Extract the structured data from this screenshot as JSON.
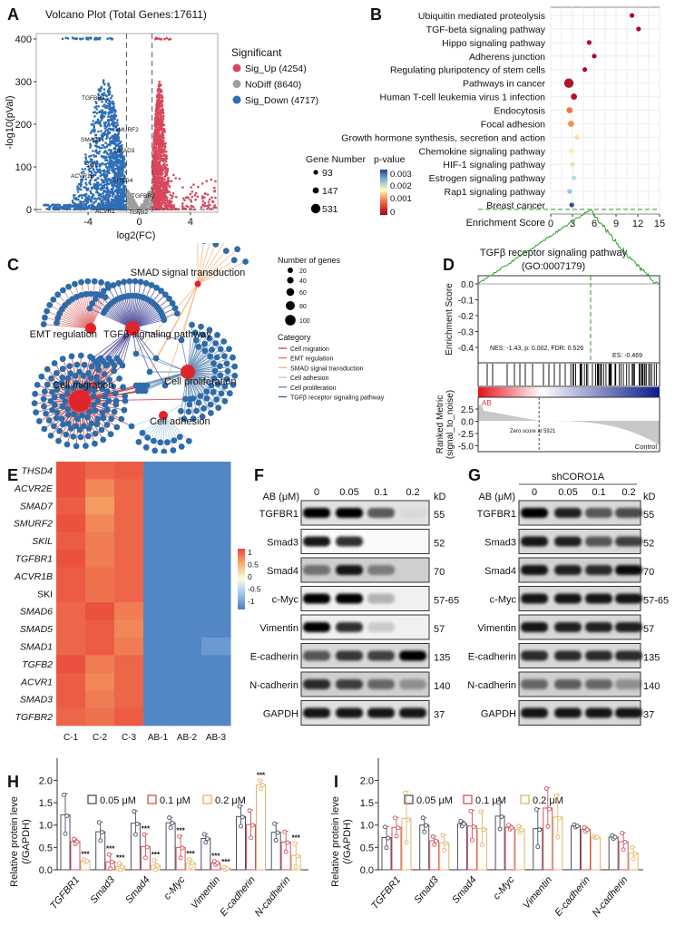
{
  "panel_labels": [
    "A",
    "B",
    "C",
    "D",
    "E",
    "F",
    "G",
    "H",
    "I"
  ],
  "chart_data": [
    {
      "type": "scatter",
      "title": "Volcano Plot (Total Genes:17611)",
      "xlabel": "log2(FC)",
      "ylabel": "-log10(pVal)",
      "xticks": [
        "-4",
        "0",
        "4"
      ],
      "yticks": [
        "0",
        "100",
        "200",
        "300",
        "400"
      ],
      "xlim": [
        -7.8,
        6.3
      ],
      "ylim": [
        0,
        400
      ],
      "fc_threshold": 1,
      "legend_title": "Significant",
      "series": [
        {
          "name": "Sig_Up (4254)",
          "count": 4254,
          "color": "#d9475a"
        },
        {
          "name": "NoDiff (8640)",
          "count": 8640,
          "color": "#9e9e9e"
        },
        {
          "name": "Sig_Down (4717)",
          "count": 4717,
          "color": "#2f6eb5"
        }
      ],
      "gene_labels": [
        "TGFBR1",
        "SMURF2",
        "SMAD7",
        "SMAD3",
        "SKIL",
        "ACVR1B",
        "THSD4",
        "TGFBR2",
        "ACVR1",
        "TGFB2"
      ]
    },
    {
      "type": "scatter",
      "xlabel": "Enrichment Score",
      "xticks": [
        "0",
        "3",
        "6",
        "9",
        "12",
        "15"
      ],
      "xlim": [
        0,
        15
      ],
      "categories": [
        "Ubiquitin mediated proteolysis",
        "TGF-beta signaling pathway",
        "Hippo signaling pathway",
        "Adherens junction",
        "Regulating pluripotency of stem cells",
        "Pathways in cancer",
        "Human T-cell leukemia virus 1 infection",
        "Endocytosis",
        "Focal adhesion",
        "Growth hormone synthesis, secretion and action",
        "Chemokine signaling pathway",
        "HIF-1 signaling pathway",
        "Estrogen signaling pathway",
        "Rap1 signaling pathway",
        "Breast cancer"
      ],
      "enrichment": [
        11.2,
        12.1,
        5.3,
        6.0,
        4.7,
        2.5,
        3.2,
        2.6,
        2.8,
        3.6,
        2.8,
        3.0,
        3.2,
        2.6,
        2.9
      ],
      "pvalue": [
        0.0001,
        0.0001,
        0.0001,
        0.0001,
        0.0001,
        0.0002,
        0.0002,
        0.0011,
        0.0013,
        0.0019,
        0.002,
        0.0023,
        0.0027,
        0.0029,
        0.0035
      ],
      "gene_number": [
        93,
        93,
        93,
        93,
        93,
        531,
        147,
        147,
        147,
        93,
        93,
        93,
        93,
        93,
        93
      ],
      "size_legend": {
        "title": "Gene Number",
        "values": [
          "93",
          "147",
          "531"
        ]
      },
      "color_legend": {
        "title": "p-value",
        "ticks": [
          "0.003",
          "0.002",
          "0.001",
          "0"
        ]
      }
    },
    {
      "type": "line",
      "title": "TGFβ receptor signaling pathway",
      "subtitle": "(GO:0007179)",
      "ylabel": "Enrichment Score",
      "yticks": [
        "0.0",
        "-0.1",
        "-0.2",
        "-0.3",
        "-0.4"
      ],
      "ylim": [
        -0.47,
        0.0
      ],
      "min_es": -0.469,
      "nes_text": "NES: -1.43, p: 0.002, FDR: 0.526",
      "es_text": "ES: -0.469",
      "ranked_ylabel": [
        "Ranked Metric",
        "(signal_to_noise)"
      ],
      "ranked_yticks": [
        "2.5",
        "0.0",
        "-2.5",
        "-5.0"
      ],
      "zero_score_text": "Zero score at 5921",
      "pos_label": "AB",
      "neg_label": "Control"
    },
    {
      "type": "heatmap",
      "rows": [
        "THSD4",
        "ACVR2E",
        "SMAD7",
        "SMURF2",
        "SKIL",
        "TGFBR1",
        "ACVR1B",
        "SKI",
        "SMAD6",
        "SMAD5",
        "SMAD1",
        "TGFB2",
        "ACVR1",
        "SMAD3",
        "TGFBR2"
      ],
      "columns": [
        "C-1",
        "C-2",
        "C-3",
        "AB-1",
        "AB-2",
        "AB-3"
      ],
      "values": [
        [
          0.95,
          0.85,
          0.9,
          -0.95,
          -0.95,
          -0.95
        ],
        [
          0.95,
          0.7,
          0.85,
          -0.95,
          -0.95,
          -0.95
        ],
        [
          0.9,
          0.6,
          0.85,
          -0.95,
          -0.95,
          -0.95
        ],
        [
          0.95,
          0.7,
          0.85,
          -0.95,
          -0.95,
          -0.95
        ],
        [
          0.9,
          0.75,
          0.85,
          -0.95,
          -0.95,
          -0.95
        ],
        [
          0.95,
          0.75,
          0.85,
          -0.95,
          -0.95,
          -0.95
        ],
        [
          0.9,
          0.8,
          0.85,
          -0.95,
          -0.95,
          -0.95
        ],
        [
          0.9,
          0.8,
          0.85,
          -0.95,
          -0.95,
          -0.95
        ],
        [
          0.85,
          0.95,
          0.75,
          -0.95,
          -0.95,
          -0.95
        ],
        [
          0.85,
          0.9,
          0.7,
          -0.95,
          -0.95,
          -0.95
        ],
        [
          0.85,
          0.9,
          0.75,
          -0.95,
          -0.95,
          -0.8
        ],
        [
          0.95,
          0.75,
          0.85,
          -0.95,
          -0.95,
          -0.95
        ],
        [
          0.9,
          0.7,
          0.85,
          -0.95,
          -0.95,
          -0.95
        ],
        [
          0.9,
          0.75,
          0.85,
          -0.95,
          -0.95,
          -0.95
        ],
        [
          0.85,
          0.8,
          0.9,
          -0.95,
          -0.95,
          -0.95
        ]
      ],
      "colorbar_ticks": [
        "1",
        "0.5",
        "0",
        "-0.5",
        "-1"
      ]
    },
    {
      "type": "bar",
      "ylabel": [
        "Relative protein leve",
        "(/GAPDH)"
      ],
      "yticks": [
        "0.0",
        "0.5",
        "1.0",
        "1.5",
        "2.0"
      ],
      "ylim": [
        0,
        2.5
      ],
      "categories": [
        "TGFBR1",
        "Smad3",
        "Smad4",
        "c-Myc",
        "Vimentin",
        "E-cadherin",
        "N-cadherin"
      ],
      "series": [
        {
          "name": "0.05 μM",
          "color": "#4b4f63",
          "values": [
            1.23,
            0.85,
            1.04,
            1.05,
            0.7,
            1.19,
            0.84
          ],
          "sd": [
            0.47,
            0.22,
            0.28,
            0.12,
            0.1,
            0.24,
            0.2
          ],
          "sig": [
            "",
            "",
            "",
            "",
            "",
            "",
            ""
          ]
        },
        {
          "name": "0.1 μM",
          "color": "#d0505a",
          "values": [
            0.63,
            0.18,
            0.52,
            0.5,
            0.15,
            1.01,
            0.62
          ],
          "sd": [
            0.06,
            0.17,
            0.28,
            0.26,
            0.04,
            0.33,
            0.24
          ],
          "sig": [
            "",
            "***",
            "***",
            "***",
            "***",
            "",
            ""
          ]
        },
        {
          "name": "0.2 μM",
          "color": "#e2b56a",
          "values": [
            0.2,
            0.07,
            0.1,
            0.15,
            0.03,
            1.9,
            0.32
          ],
          "sd": [
            0.03,
            0.08,
            0.12,
            0.09,
            0.03,
            0.1,
            0.28
          ],
          "sig": [
            "***",
            "***",
            "***",
            "***",
            "***",
            "***",
            "***"
          ]
        }
      ]
    },
    {
      "type": "bar",
      "ylabel": [
        "Relative protein leve",
        "(/GAPDH)"
      ],
      "yticks": [
        "0.0",
        "0.5",
        "1.0",
        "1.5",
        "2.0"
      ],
      "ylim": [
        0,
        2.5
      ],
      "categories": [
        "TGFBR1",
        "Smad3",
        "Smad4",
        "c-Myc",
        "Vimentin",
        "E-cadherin",
        "N-cadherin"
      ],
      "series": [
        {
          "name": "0.05 μM",
          "color": "#4b4f63",
          "values": [
            0.72,
            1.0,
            1.03,
            1.2,
            0.92,
            0.98,
            0.73
          ],
          "sd": [
            0.25,
            0.17,
            0.06,
            0.32,
            0.45,
            0.03,
            0.04
          ]
        },
        {
          "name": "0.1 μM",
          "color": "#d0505a",
          "values": [
            0.95,
            0.65,
            0.98,
            0.95,
            1.38,
            0.9,
            0.63
          ],
          "sd": [
            0.22,
            0.1,
            0.35,
            0.05,
            0.46,
            0.05,
            0.2
          ]
        },
        {
          "name": "0.2 μM",
          "color": "#e2b56a",
          "values": [
            1.15,
            0.6,
            0.92,
            0.9,
            1.18,
            0.73,
            0.37
          ],
          "sd": [
            0.6,
            0.18,
            0.4,
            0.08,
            0.5,
            0.02,
            0.14
          ]
        }
      ]
    }
  ],
  "network": {
    "hubs": [
      "SMAD signal transduction",
      "EMT regulation",
      "TGFβ signaling pathway",
      "Cell migration",
      "Cell proliferation",
      "Cell adhesion"
    ],
    "size_legend_title": "Number of genes",
    "size_values": [
      "20",
      "40",
      "60",
      "80",
      "100"
    ],
    "category_title": "Category",
    "categories": [
      {
        "label": "Cell migration",
        "color": "#c23b3b"
      },
      {
        "label": "EMT regulation",
        "color": "#e07070"
      },
      {
        "label": "SMAD signal transduction",
        "color": "#f0b27a"
      },
      {
        "label": "Cell adhesion",
        "color": "#a8cbe0"
      },
      {
        "label": "Cell proliferation",
        "color": "#5b86b0"
      },
      {
        "label": "TGFβ receptor signaling pathway",
        "color": "#4b4a9c"
      }
    ]
  },
  "western_blots": {
    "F": {
      "dose_label": "AB (μM)",
      "lanes": [
        "0",
        "0.05",
        "0.1",
        "0.2"
      ],
      "kd_label": "kD",
      "rows": [
        {
          "protein": "TGFBR1",
          "kd": "55",
          "intensity": [
            1,
            1,
            0.6,
            0.04
          ]
        },
        {
          "protein": "Smad3",
          "kd": "52",
          "intensity": [
            0.9,
            0.8,
            0,
            0
          ]
        },
        {
          "protein": "Smad4",
          "kd": "70",
          "intensity": [
            0.45,
            0.9,
            0.4,
            0
          ]
        },
        {
          "protein": "c-Myc",
          "kd": "57-65",
          "intensity": [
            1,
            1,
            0.25,
            0
          ]
        },
        {
          "protein": "Vimentin",
          "kd": "57",
          "intensity": [
            1,
            0.8,
            0.15,
            0
          ]
        },
        {
          "protein": "E-cadherin",
          "kd": "135",
          "intensity": [
            0.6,
            0.75,
            0.7,
            1
          ]
        },
        {
          "protein": "N-cadherin",
          "kd": "140",
          "intensity": [
            0.8,
            0.7,
            0.5,
            0.3
          ]
        },
        {
          "protein": "GAPDH",
          "kd": "37",
          "intensity": [
            0.9,
            0.9,
            0.9,
            0.9
          ]
        }
      ]
    },
    "G": {
      "condition": "shCORO1A",
      "dose_label": "AB (μM)",
      "lanes": [
        "0",
        "0.05",
        "0.1",
        "0.2"
      ],
      "kd_label": "kD",
      "rows": [
        {
          "protein": "TGFBR1",
          "kd": "55",
          "intensity": [
            1,
            0.85,
            0.6,
            0.65
          ]
        },
        {
          "protein": "Smad3",
          "kd": "52",
          "intensity": [
            0.9,
            0.85,
            0.6,
            0.7
          ]
        },
        {
          "protein": "Smad4",
          "kd": "70",
          "intensity": [
            0.9,
            0.85,
            0.8,
            0.95
          ]
        },
        {
          "protein": "c-Myc",
          "kd": "57-65",
          "intensity": [
            0.9,
            0.9,
            0.9,
            0.9
          ]
        },
        {
          "protein": "Vimentin",
          "kd": "57",
          "intensity": [
            0.9,
            0.85,
            0.85,
            0.85
          ]
        },
        {
          "protein": "E-cadherin",
          "kd": "135",
          "intensity": [
            0.8,
            0.8,
            0.8,
            0.8
          ]
        },
        {
          "protein": "N-cadherin",
          "kd": "140",
          "intensity": [
            0.5,
            0.55,
            0.5,
            0.3
          ]
        },
        {
          "protein": "GAPDH",
          "kd": "37",
          "intensity": [
            0.9,
            0.9,
            0.9,
            0.9
          ]
        }
      ]
    }
  }
}
